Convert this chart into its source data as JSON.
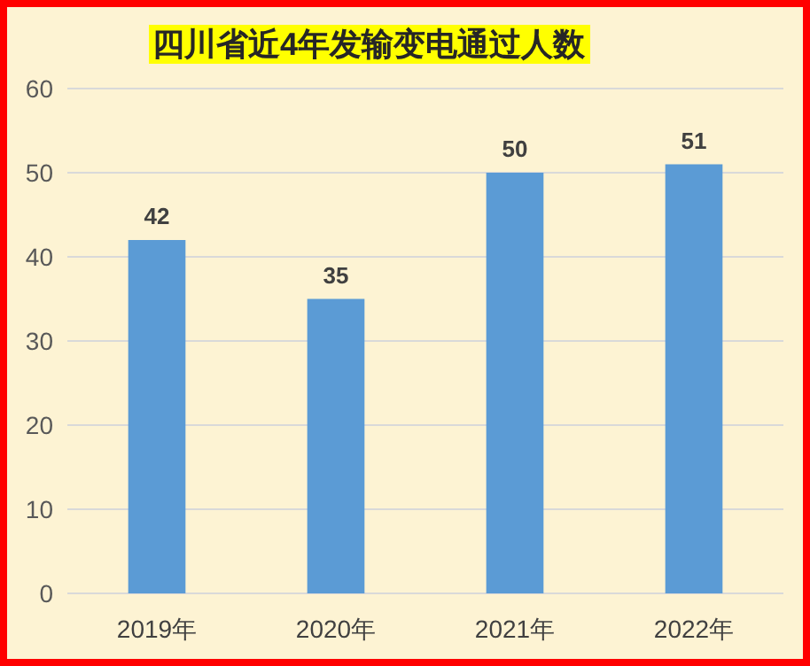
{
  "chart_data": {
    "type": "bar",
    "title": "四川省近4年发输变电通过人数",
    "categories": [
      "2019年",
      "2020年",
      "2021年",
      "2022年"
    ],
    "values": [
      42,
      35,
      50,
      51
    ],
    "color": "#5b9bd5",
    "ylim": [
      0,
      60
    ],
    "yticks": [
      0,
      10,
      20,
      30,
      40,
      50,
      60
    ],
    "grid": "y",
    "data_labels": true
  }
}
